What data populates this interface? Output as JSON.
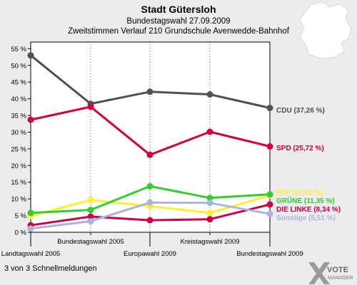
{
  "header": {
    "title": "Stadt Gütersloh",
    "subtitle": "Bundestagswahl 27.09.2009",
    "subtitle2": "Zweitstimmen Verlauf 210 Grundschule Avenwedde-Bahnhof"
  },
  "footer": {
    "text": "3 von 3 Schnellmeldungen"
  },
  "logo": {
    "line1": "VOTE",
    "line2": "MANAGER"
  },
  "chart_data": {
    "type": "line",
    "categories": [
      "Landtagswahl 2005",
      "Bundestagswahl 2005",
      "Europawahl 2009",
      "Kreistagswahl 2009",
      "Bundestagswahl 2009"
    ],
    "ylim": [
      0,
      57
    ],
    "y_ticks": [
      0,
      5,
      10,
      15,
      20,
      25,
      30,
      35,
      40,
      45,
      50,
      55
    ],
    "y_tick_labels": [
      "0 %",
      "5 %",
      "10 %",
      "15 %",
      "20 %",
      "25 %",
      "30 %",
      "35 %",
      "40 %",
      "45 %",
      "50 %",
      "55 %"
    ],
    "grid": "vertical",
    "series": [
      {
        "name": "CDU",
        "label": "CDU (37,26 %)",
        "color": "#505050",
        "values": [
          53.0,
          38.5,
          42.1,
          41.3,
          37.26
        ]
      },
      {
        "name": "SPD",
        "label": "SPD (25,72 %)",
        "color": "#d4003a",
        "values": [
          33.7,
          37.6,
          23.2,
          30.1,
          25.72
        ]
      },
      {
        "name": "FDP",
        "label": "FDP (11,02 %)",
        "color": "#ffee33",
        "values": [
          4.8,
          9.7,
          7.8,
          5.8,
          11.02
        ]
      },
      {
        "name": "GRÜNE",
        "label": "GRÜNE (11,35 %)",
        "color": "#33cc33",
        "values": [
          5.8,
          6.7,
          13.8,
          10.3,
          11.35
        ]
      },
      {
        "name": "DIE LINKE",
        "label": "DIE LINKE (8,34 %)",
        "color": "#cc0044",
        "values": [
          2.1,
          4.7,
          3.6,
          3.9,
          8.34
        ]
      },
      {
        "name": "Sonstige",
        "label": "Sonstige (5,51 %)",
        "color": "#aab4dd",
        "values": [
          1.1,
          3.3,
          8.9,
          8.8,
          5.51
        ]
      }
    ]
  }
}
